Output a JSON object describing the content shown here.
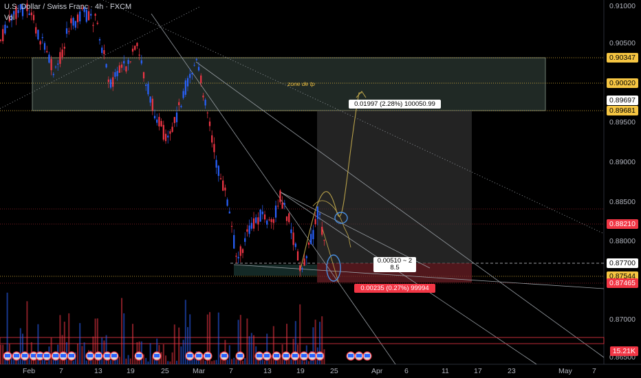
{
  "header": {
    "symbol": "U.S. Dollar / Swiss Franc · 4h · FXCM",
    "volume_label": "Vol"
  },
  "price_axis": {
    "ticks": [
      "0.91000",
      "0.90500",
      "0.90000",
      "0.89500",
      "0.89000",
      "0.88500",
      "0.88000",
      "0.87500",
      "0.87000",
      "0.86500"
    ],
    "tags": [
      {
        "value": "0.90347",
        "bg": "#f5c542",
        "fg": "#000"
      },
      {
        "value": "0.90020",
        "bg": "#f5c542",
        "fg": "#000"
      },
      {
        "value": "0.89697",
        "bg": "#ffffff",
        "fg": "#000"
      },
      {
        "value": "0.89681",
        "bg": "#f5c542",
        "fg": "#000"
      },
      {
        "value": "0.88210",
        "bg": "#f23645",
        "fg": "#fff"
      },
      {
        "value": "0.87700",
        "bg": "#ffffff",
        "fg": "#000"
      },
      {
        "value": "0.87544",
        "bg": "#f5c542",
        "fg": "#000"
      },
      {
        "value": "0.87465",
        "bg": "#f23645",
        "fg": "#fff"
      },
      {
        "value": "15.21K",
        "bg": "#f23645",
        "fg": "#fff"
      }
    ]
  },
  "time_axis": {
    "labels": [
      "Feb",
      "7",
      "13",
      "19",
      "25",
      "Mar",
      "7",
      "13",
      "19",
      "25",
      "Apr",
      "6",
      "11",
      "17",
      "23",
      "May",
      "7"
    ]
  },
  "annotations": {
    "zone_label": "zone de tp",
    "target_box": "0.01997 (2.28%) 100050.99",
    "stop_box": "0.00235 (0.27%) 99994",
    "ratio_line1": "0.00510 ~ 2",
    "ratio_line2": "8.5"
  },
  "colors": {
    "up": "#2962ff",
    "down": "#f23645",
    "bg": "#000000",
    "zone": "#3a4a44",
    "target": "#3a3a3a",
    "stop": "#6b1f26",
    "curve": "#b8a14a"
  },
  "icons": [
    "us-flag-event-icon"
  ]
}
